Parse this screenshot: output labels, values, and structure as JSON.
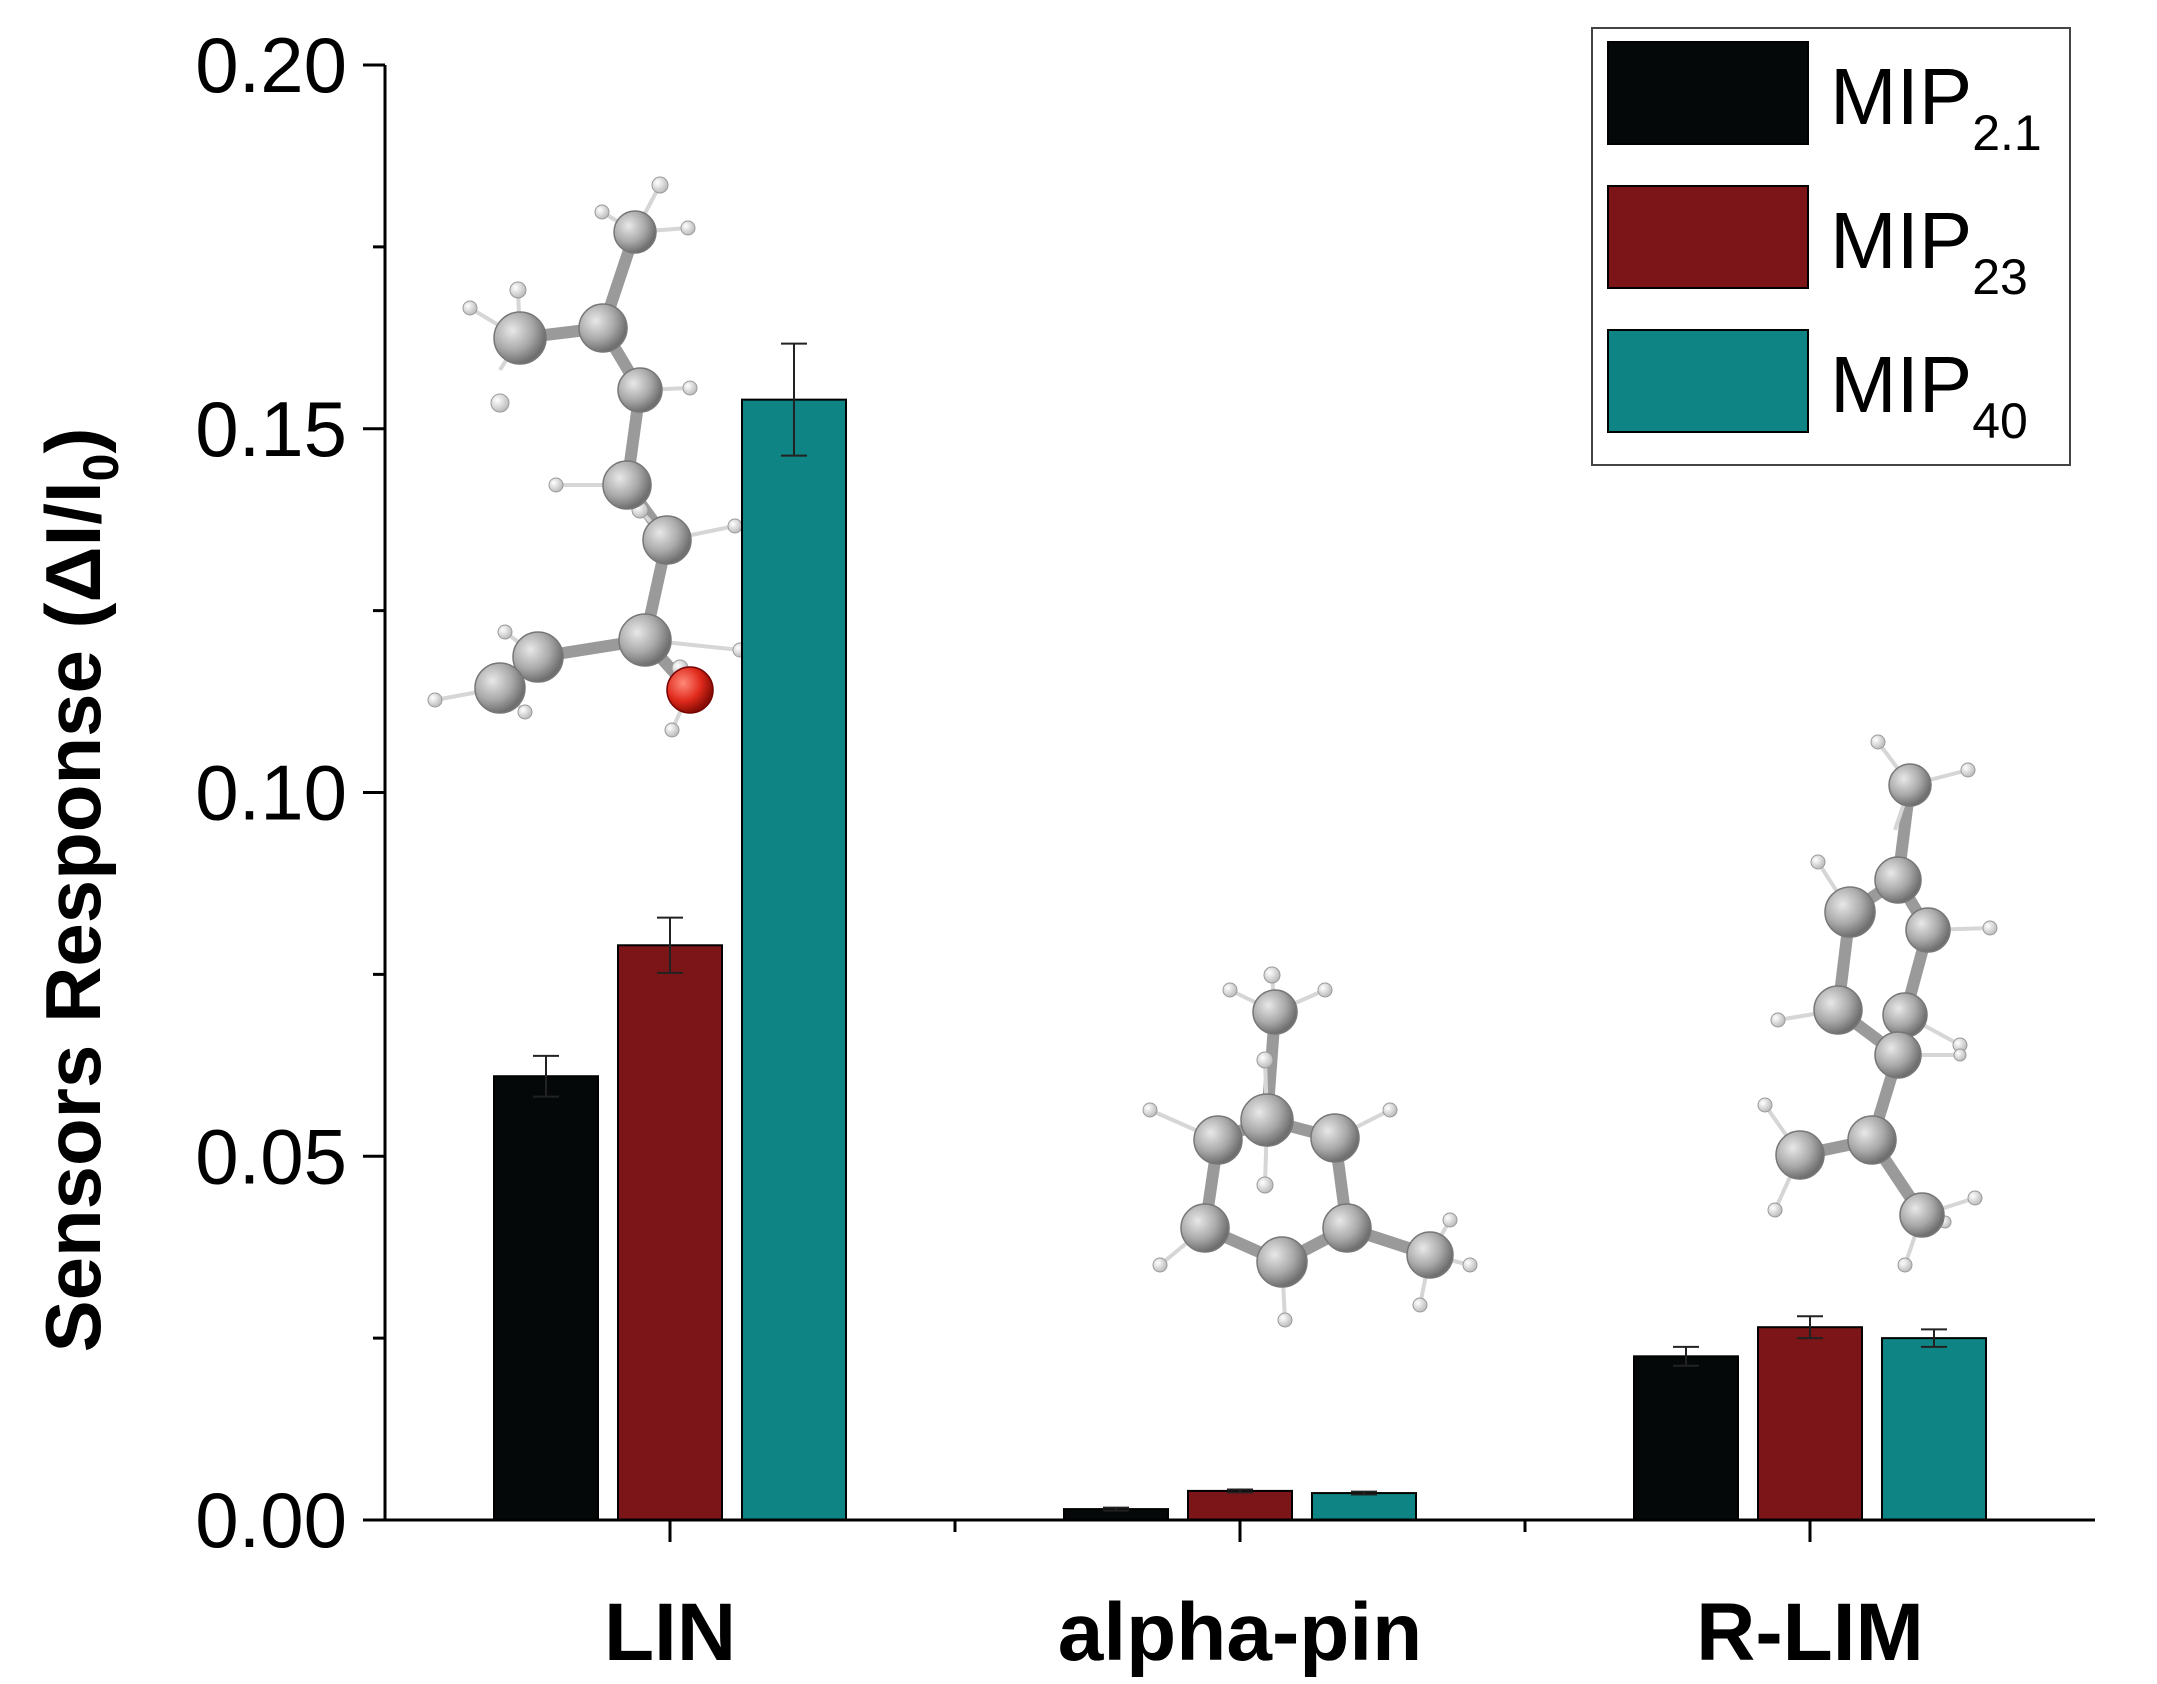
{
  "chart_data": {
    "type": "bar",
    "categories": [
      "LIN",
      "alpha-pin",
      "R-LIM"
    ],
    "series": [
      {
        "name": "MIP",
        "subscript": "2.1",
        "color": "#050808",
        "values": [
          0.061,
          0.0015,
          0.0225
        ],
        "errors": [
          0.0028,
          0.0002,
          0.0013
        ]
      },
      {
        "name": "MIP",
        "subscript": "23",
        "color": "#7c1518",
        "values": [
          0.079,
          0.004,
          0.0265
        ],
        "errors": [
          0.0038,
          0.0002,
          0.0015
        ]
      },
      {
        "name": "MIP",
        "subscript": "40",
        "color": "#0f8484",
        "values": [
          0.154,
          0.0037,
          0.025
        ],
        "errors": [
          0.0077,
          0.0002,
          0.0012
        ]
      }
    ],
    "ylabel": {
      "main": "Sensors Response (ΔI/I",
      "sub": "0",
      "close": ")"
    },
    "xlabel": "",
    "ylim": [
      0,
      0.2
    ],
    "yticks": [
      "0.00",
      "0.05",
      "0.10",
      "0.15",
      "0.20"
    ],
    "legend_position": "top-right",
    "grid": false
  },
  "molecules": [
    {
      "category": "LIN",
      "icon": "linalool-molecule-icon"
    },
    {
      "category": "alpha-pin",
      "icon": "alpha-pinene-molecule-icon"
    },
    {
      "category": "R-LIM",
      "icon": "limonene-molecule-icon"
    }
  ]
}
